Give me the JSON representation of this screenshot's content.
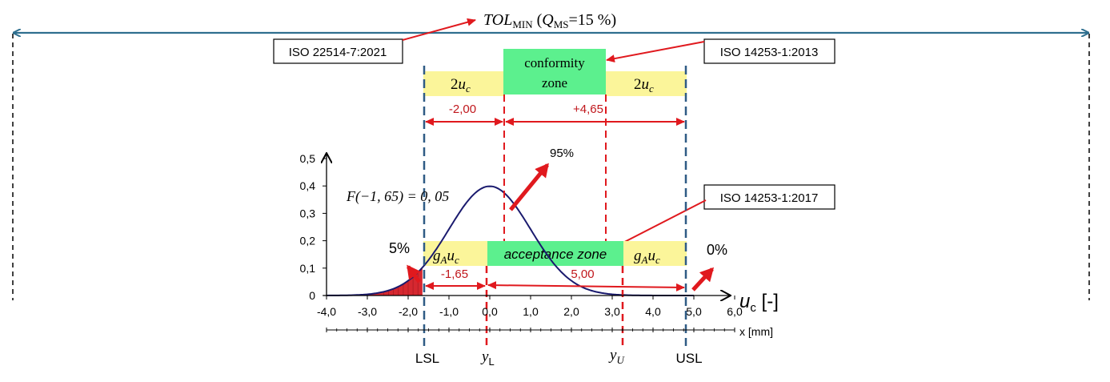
{
  "title": {
    "main": "TOL",
    "main_sub": "MIN",
    "paren_open": " (",
    "q": "Q",
    "q_sub": "MS",
    "q_value": "=15 %)"
  },
  "standards": {
    "iso22514": "ISO 22514-7:2021",
    "iso14253_2013": "ISO 14253-1:2013",
    "iso14253_2017": "ISO 14253-1:2017"
  },
  "zones": {
    "conformity_line1": "conformity",
    "conformity_line2": "zone",
    "two": "2",
    "u": "u",
    "c": "c",
    "g": "g",
    "A": "A",
    "acceptance": "acceptance zone"
  },
  "dimensions": {
    "upper_left": "-2,00",
    "upper_right": "+4,65",
    "lower_left": "-1,65",
    "lower_right": "5,00"
  },
  "annotations": {
    "formula": "F(−1, 65) = 0, 05",
    "pct_95": "95%",
    "pct_5": "5%",
    "pct_0": "0%"
  },
  "limits": {
    "lsl": "LSL",
    "usl": "USL",
    "y": "y",
    "yl_sub": "L",
    "yu_sub": "U"
  },
  "axes": {
    "uc_u": "u",
    "uc_c": "c",
    "uc_unit": " [-]",
    "x_label": "x [mm]",
    "x_ticks": [
      "-4,0",
      "-3,0",
      "-2,0",
      "-1,0",
      "0,0",
      "1,0",
      "2,0",
      "3,0",
      "4,0",
      "5,0",
      "6,0"
    ],
    "y_ticks": [
      "0",
      "0,1",
      "0,2",
      "0,3",
      "0,4",
      "0,5"
    ]
  },
  "chart_data": {
    "type": "line",
    "series": [
      {
        "values_description_free": true,
        "x": [
          -4.0,
          -3.5,
          -3.0,
          -2.5,
          -2.0,
          -1.65,
          -1.5,
          -1.0,
          -0.5,
          0.0,
          0.5,
          1.0,
          1.5,
          2.0,
          2.5,
          3.0,
          3.5,
          4.0,
          5.0
        ],
        "values": [
          0.0001,
          0.0009,
          0.0044,
          0.0175,
          0.054,
          0.1,
          0.13,
          0.242,
          0.352,
          0.399,
          0.352,
          0.242,
          0.13,
          0.054,
          0.0175,
          0.0044,
          0.0009,
          0.0001,
          0.0
        ]
      }
    ],
    "shaded_tail_upper_x": -1.65,
    "xlim": [
      -4.0,
      6.0
    ],
    "ylim": [
      0,
      0.5
    ],
    "colors": {
      "curve": "#1a1a6e",
      "tail": "#d62830",
      "limit_blue": "#2f5b85",
      "limit_red": "#e0191e",
      "yellow": "#fbf59a",
      "green": "#5cf08e",
      "arrow_blue": "#2f6f8f"
    }
  }
}
